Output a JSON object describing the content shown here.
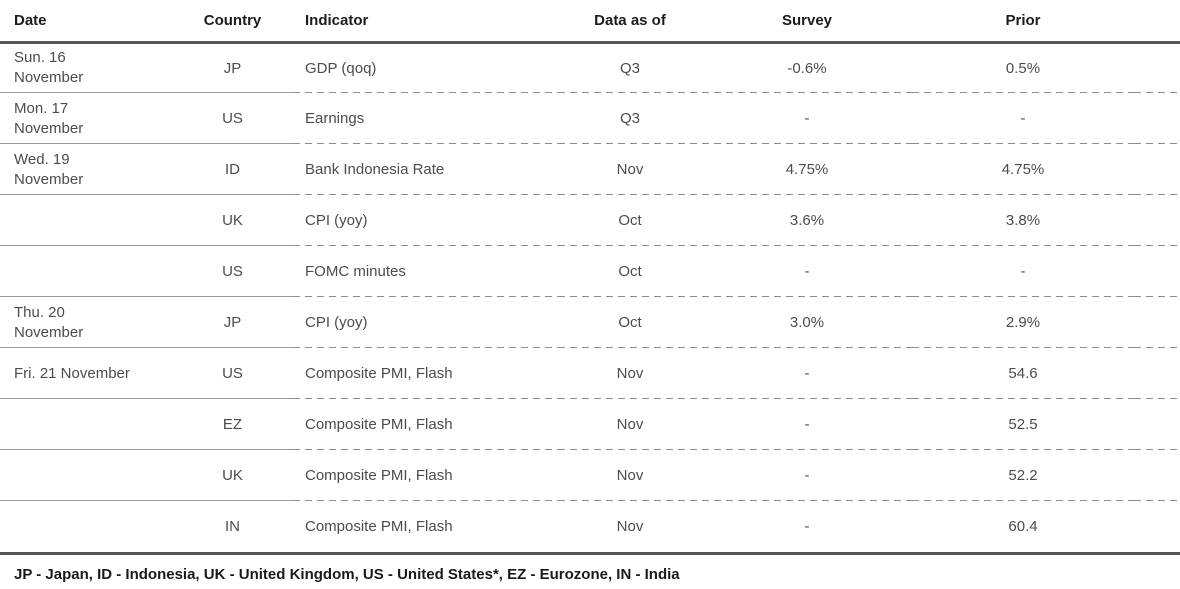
{
  "table": {
    "columns": [
      {
        "key": "date",
        "label": "Date"
      },
      {
        "key": "country",
        "label": "Country"
      },
      {
        "key": "indicator",
        "label": "Indicator"
      },
      {
        "key": "data_as_of",
        "label": "Data as of"
      },
      {
        "key": "survey",
        "label": "Survey"
      },
      {
        "key": "prior",
        "label": "Prior"
      }
    ],
    "rows": [
      {
        "date": "Sun. 16\nNovember",
        "country": "JP",
        "indicator": "GDP (qoq)",
        "data_as_of": "Q3",
        "survey": "-0.6%",
        "prior": "0.5%"
      },
      {
        "date": "Mon. 17\nNovember",
        "country": "US",
        "indicator": "Earnings",
        "data_as_of": "Q3",
        "survey": "-",
        "prior": "-"
      },
      {
        "date": "Wed. 19\nNovember",
        "country": "ID",
        "indicator": "Bank Indonesia Rate",
        "data_as_of": "Nov",
        "survey": "4.75%",
        "prior": "4.75%"
      },
      {
        "date": "",
        "country": "UK",
        "indicator": "CPI (yoy)",
        "data_as_of": "Oct",
        "survey": "3.6%",
        "prior": "3.8%"
      },
      {
        "date": "",
        "country": "US",
        "indicator": "FOMC minutes",
        "data_as_of": "Oct",
        "survey": "-",
        "prior": "-"
      },
      {
        "date": "Thu. 20\nNovember",
        "country": "JP",
        "indicator": "CPI (yoy)",
        "data_as_of": "Oct",
        "survey": "3.0%",
        "prior": "2.9%"
      },
      {
        "date": "Fri. 21 November",
        "country": "US",
        "indicator": "Composite PMI, Flash",
        "data_as_of": "Nov",
        "survey": "-",
        "prior": "54.6"
      },
      {
        "date": "",
        "country": "EZ",
        "indicator": "Composite PMI, Flash",
        "data_as_of": "Nov",
        "survey": "-",
        "prior": "52.5"
      },
      {
        "date": "",
        "country": "UK",
        "indicator": "Composite PMI, Flash",
        "data_as_of": "Nov",
        "survey": "-",
        "prior": "52.2"
      },
      {
        "date": "",
        "country": "IN",
        "indicator": "Composite PMI, Flash",
        "data_as_of": "Nov",
        "survey": "-",
        "prior": "60.4"
      }
    ],
    "legend": "JP - Japan, ID - Indonesia, UK - United Kingdom, US - United States*, EZ - Eurozone, IN - India"
  },
  "colors": {
    "thick_rule": "#55565a",
    "thin_solid_rule": "#9a9a9a",
    "dashed_rule": "#8c8c8c",
    "header_text": "#1c1c1e",
    "body_text": "#4c4c4e",
    "legend_text": "#1a1a1a",
    "background": "#ffffff"
  }
}
